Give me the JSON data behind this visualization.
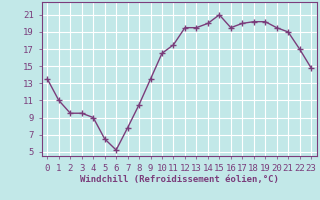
{
  "x": [
    0,
    1,
    2,
    3,
    4,
    5,
    6,
    7,
    8,
    9,
    10,
    11,
    12,
    13,
    14,
    15,
    16,
    17,
    18,
    19,
    20,
    21,
    22,
    23
  ],
  "y": [
    13.5,
    11.0,
    9.5,
    9.5,
    9.0,
    6.5,
    5.2,
    7.8,
    10.5,
    13.5,
    16.5,
    17.5,
    19.5,
    19.5,
    20.0,
    21.0,
    19.5,
    20.0,
    20.2,
    20.2,
    19.5,
    19.0,
    17.0,
    14.8
  ],
  "line_color": "#7b3d7b",
  "marker": "+",
  "marker_size": 4,
  "bg_color": "#c2e8e8",
  "grid_color": "#ffffff",
  "xlabel": "Windchill (Refroidissement éolien,°C)",
  "xlabel_color": "#7b3d7b",
  "tick_color": "#7b3d7b",
  "spine_color": "#7b3d7b",
  "ylim": [
    4.5,
    22.5
  ],
  "xlim": [
    -0.5,
    23.5
  ],
  "yticks": [
    5,
    7,
    9,
    11,
    13,
    15,
    17,
    19,
    21
  ],
  "xticks": [
    0,
    1,
    2,
    3,
    4,
    5,
    6,
    7,
    8,
    9,
    10,
    11,
    12,
    13,
    14,
    15,
    16,
    17,
    18,
    19,
    20,
    21,
    22,
    23
  ],
  "xlabel_fontsize": 6.5,
  "tick_fontsize": 6.5,
  "line_width": 1.0,
  "marker_edge_width": 1.0
}
